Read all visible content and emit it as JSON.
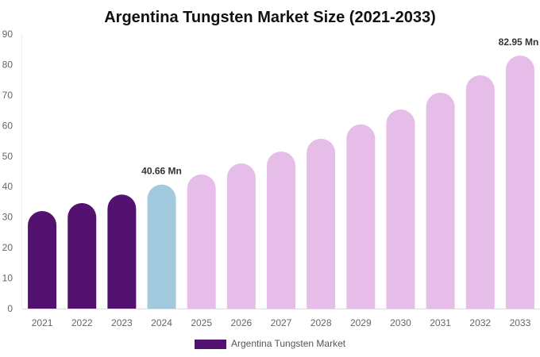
{
  "chart_data": {
    "type": "bar",
    "title": "Argentina Tungsten Market Size (2021-2033)",
    "xlabel": "",
    "ylabel": "",
    "ylim": [
      0,
      90
    ],
    "yticks": [
      0,
      10,
      20,
      30,
      40,
      50,
      60,
      70,
      80,
      90
    ],
    "categories": [
      "2021",
      "2022",
      "2023",
      "2024",
      "2025",
      "2026",
      "2027",
      "2028",
      "2029",
      "2030",
      "2031",
      "2032",
      "2033"
    ],
    "series": [
      {
        "name": "Argentina Tungsten Market",
        "values": [
          32.0,
          34.6,
          37.4,
          40.66,
          44.0,
          47.6,
          51.5,
          55.7,
          60.4,
          65.3,
          70.8,
          76.5,
          82.95
        ]
      }
    ],
    "bar_colors": [
      "#541270",
      "#541270",
      "#541270",
      "#a3c9de",
      "#e6bde8",
      "#e6bde8",
      "#e6bde8",
      "#e6bde8",
      "#e6bde8",
      "#e6bde8",
      "#e6bde8",
      "#e6bde8",
      "#e6bde8"
    ],
    "data_labels": [
      {
        "category": "2024",
        "text": "40.66 Mn"
      },
      {
        "category": "2033",
        "text": "82.95 Mn"
      }
    ],
    "legend": {
      "position": "bottom",
      "label": "Argentina Tungsten Market",
      "color": "#541270"
    },
    "grid": false
  }
}
